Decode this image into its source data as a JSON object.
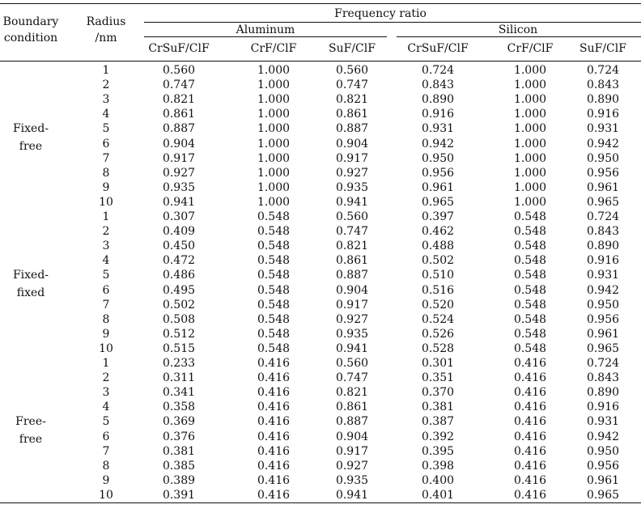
{
  "table": {
    "headers": {
      "boundary_line1": "Boundary",
      "boundary_line2": "condition",
      "radius_line1": "Radius",
      "radius_line2": "/nm",
      "frequency_ratio": "Frequency ratio",
      "material_aluminum": "Aluminum",
      "material_silicon": "Silicon",
      "columns": [
        "CrSuF/ClF",
        "CrF/ClF",
        "SuF/ClF",
        "CrSuF/ClF",
        "CrF/ClF",
        "SuF/ClF"
      ]
    },
    "groups": [
      {
        "label_line1": "Fixed-",
        "label_line2": "free",
        "rows": [
          {
            "radius": "1",
            "values": [
              "0.560",
              "1.000",
              "0.560",
              "0.724",
              "1.000",
              "0.724"
            ]
          },
          {
            "radius": "2",
            "values": [
              "0.747",
              "1.000",
              "0.747",
              "0.843",
              "1.000",
              "0.843"
            ]
          },
          {
            "radius": "3",
            "values": [
              "0.821",
              "1.000",
              "0.821",
              "0.890",
              "1.000",
              "0.890"
            ]
          },
          {
            "radius": "4",
            "values": [
              "0.861",
              "1.000",
              "0.861",
              "0.916",
              "1.000",
              "0.916"
            ]
          },
          {
            "radius": "5",
            "values": [
              "0.887",
              "1.000",
              "0.887",
              "0.931",
              "1.000",
              "0.931"
            ]
          },
          {
            "radius": "6",
            "values": [
              "0.904",
              "1.000",
              "0.904",
              "0.942",
              "1.000",
              "0.942"
            ]
          },
          {
            "radius": "7",
            "values": [
              "0.917",
              "1.000",
              "0.917",
              "0.950",
              "1.000",
              "0.950"
            ]
          },
          {
            "radius": "8",
            "values": [
              "0.927",
              "1.000",
              "0.927",
              "0.956",
              "1.000",
              "0.956"
            ]
          },
          {
            "radius": "9",
            "values": [
              "0.935",
              "1.000",
              "0.935",
              "0.961",
              "1.000",
              "0.961"
            ]
          },
          {
            "radius": "10",
            "values": [
              "0.941",
              "1.000",
              "0.941",
              "0.965",
              "1.000",
              "0.965"
            ]
          }
        ]
      },
      {
        "label_line1": "Fixed-",
        "label_line2": "fixed",
        "rows": [
          {
            "radius": "1",
            "values": [
              "0.307",
              "0.548",
              "0.560",
              "0.397",
              "0.548",
              "0.724"
            ]
          },
          {
            "radius": "2",
            "values": [
              "0.409",
              "0.548",
              "0.747",
              "0.462",
              "0.548",
              "0.843"
            ]
          },
          {
            "radius": "3",
            "values": [
              "0.450",
              "0.548",
              "0.821",
              "0.488",
              "0.548",
              "0.890"
            ]
          },
          {
            "radius": "4",
            "values": [
              "0.472",
              "0.548",
              "0.861",
              "0.502",
              "0.548",
              "0.916"
            ]
          },
          {
            "radius": "5",
            "values": [
              "0.486",
              "0.548",
              "0.887",
              "0.510",
              "0.548",
              "0.931"
            ]
          },
          {
            "radius": "6",
            "values": [
              "0.495",
              "0.548",
              "0.904",
              "0.516",
              "0.548",
              "0.942"
            ]
          },
          {
            "radius": "7",
            "values": [
              "0.502",
              "0.548",
              "0.917",
              "0.520",
              "0.548",
              "0.950"
            ]
          },
          {
            "radius": "8",
            "values": [
              "0.508",
              "0.548",
              "0.927",
              "0.524",
              "0.548",
              "0.956"
            ]
          },
          {
            "radius": "9",
            "values": [
              "0.512",
              "0.548",
              "0.935",
              "0.526",
              "0.548",
              "0.961"
            ]
          },
          {
            "radius": "10",
            "values": [
              "0.515",
              "0.548",
              "0.941",
              "0.528",
              "0.548",
              "0.965"
            ]
          }
        ]
      },
      {
        "label_line1": "Free-",
        "label_line2": "free",
        "rows": [
          {
            "radius": "1",
            "values": [
              "0.233",
              "0.416",
              "0.560",
              "0.301",
              "0.416",
              "0.724"
            ]
          },
          {
            "radius": "2",
            "values": [
              "0.311",
              "0.416",
              "0.747",
              "0.351",
              "0.416",
              "0.843"
            ]
          },
          {
            "radius": "3",
            "values": [
              "0.341",
              "0.416",
              "0.821",
              "0.370",
              "0.416",
              "0.890"
            ]
          },
          {
            "radius": "4",
            "values": [
              "0.358",
              "0.416",
              "0.861",
              "0.381",
              "0.416",
              "0.916"
            ]
          },
          {
            "radius": "5",
            "values": [
              "0.369",
              "0.416",
              "0.887",
              "0.387",
              "0.416",
              "0.931"
            ]
          },
          {
            "radius": "6",
            "values": [
              "0.376",
              "0.416",
              "0.904",
              "0.392",
              "0.416",
              "0.942"
            ]
          },
          {
            "radius": "7",
            "values": [
              "0.381",
              "0.416",
              "0.917",
              "0.395",
              "0.416",
              "0.950"
            ]
          },
          {
            "radius": "8",
            "values": [
              "0.385",
              "0.416",
              "0.927",
              "0.398",
              "0.416",
              "0.956"
            ]
          },
          {
            "radius": "9",
            "values": [
              "0.389",
              "0.416",
              "0.935",
              "0.400",
              "0.416",
              "0.961"
            ]
          },
          {
            "radius": "10",
            "values": [
              "0.391",
              "0.416",
              "0.941",
              "0.401",
              "0.416",
              "0.965"
            ]
          }
        ]
      }
    ]
  }
}
